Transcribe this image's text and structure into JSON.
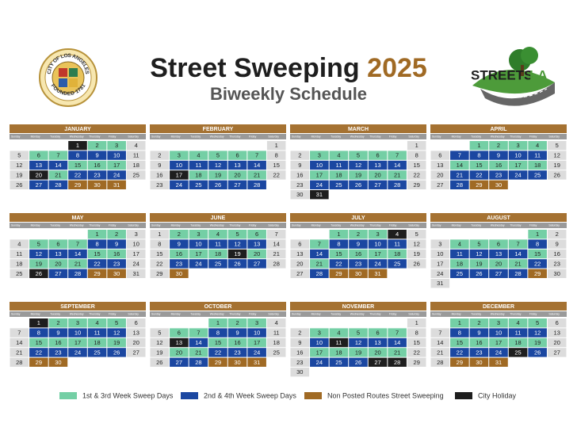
{
  "header": {
    "title": "Street Sweeping",
    "year": "2025",
    "subtitle": "Biweekly Schedule",
    "seal": {
      "top": "CITY OF LOS ANGELES",
      "bottom": "FOUNDED 1781"
    },
    "logo": {
      "left": "STREETS",
      "right": "LA"
    }
  },
  "weekdays": [
    "Sunday",
    "Monday",
    "Tuesday",
    "Wednesday",
    "Thursday",
    "Friday",
    "Saturday"
  ],
  "empty_color": "#dcdcdc",
  "months": [
    {
      "name": "JANUARY",
      "weeks": [
        [
          null,
          null,
          null,
          1,
          2,
          3,
          4
        ],
        [
          5,
          6,
          7,
          8,
          9,
          10,
          11
        ],
        [
          12,
          13,
          14,
          15,
          16,
          17,
          18
        ],
        [
          19,
          20,
          21,
          22,
          23,
          24,
          25
        ],
        [
          26,
          27,
          28,
          29,
          30,
          31
        ]
      ],
      "colors": [
        "#1e1e1e",
        "#74cfa5",
        "#74cfa5",
        null,
        null,
        "#74cfa5",
        "#74cfa5",
        "#1b47a1",
        "#1b47a1",
        "#1b47a1",
        null,
        null,
        "#1b47a1",
        "#1b47a1",
        "#74cfa5",
        "#74cfa5",
        "#74cfa5",
        null,
        null,
        "#1e1e1e",
        "#74cfa5",
        "#1b47a1",
        "#1b47a1",
        "#1b47a1",
        null,
        null,
        "#1b47a1",
        "#1b47a1",
        "#a06a24",
        "#a06a24",
        "#a06a24"
      ]
    },
    {
      "name": "FEBRUARY",
      "weeks": [
        [
          null,
          null,
          null,
          null,
          null,
          null,
          1
        ],
        [
          2,
          3,
          4,
          5,
          6,
          7,
          8
        ],
        [
          9,
          10,
          11,
          12,
          13,
          14,
          15
        ],
        [
          16,
          17,
          18,
          19,
          20,
          21,
          22
        ],
        [
          23,
          24,
          25,
          26,
          27,
          28
        ]
      ],
      "colors": [
        null,
        null,
        "#74cfa5",
        "#74cfa5",
        "#74cfa5",
        "#74cfa5",
        "#74cfa5",
        null,
        null,
        "#1b47a1",
        "#1b47a1",
        "#1b47a1",
        "#1b47a1",
        "#1b47a1",
        null,
        null,
        "#1e1e1e",
        "#74cfa5",
        "#74cfa5",
        "#74cfa5",
        "#74cfa5",
        null,
        null,
        "#1b47a1",
        "#1b47a1",
        "#1b47a1",
        "#1b47a1",
        "#1b47a1"
      ]
    },
    {
      "name": "MARCH",
      "weeks": [
        [
          null,
          null,
          null,
          null,
          null,
          null,
          1
        ],
        [
          2,
          3,
          4,
          5,
          6,
          7,
          8
        ],
        [
          9,
          10,
          11,
          12,
          13,
          14,
          15
        ],
        [
          16,
          17,
          18,
          19,
          20,
          21,
          22
        ],
        [
          23,
          24,
          25,
          26,
          27,
          28,
          29
        ],
        [
          30,
          31
        ]
      ],
      "colors": [
        null,
        null,
        "#74cfa5",
        "#74cfa5",
        "#74cfa5",
        "#74cfa5",
        "#74cfa5",
        null,
        null,
        "#1b47a1",
        "#1b47a1",
        "#1b47a1",
        "#1b47a1",
        "#1b47a1",
        null,
        null,
        "#74cfa5",
        "#74cfa5",
        "#74cfa5",
        "#74cfa5",
        "#74cfa5",
        null,
        null,
        "#1b47a1",
        "#1b47a1",
        "#1b47a1",
        "#1b47a1",
        "#1b47a1",
        null,
        null,
        "#1e1e1e"
      ]
    },
    {
      "name": "APRIL",
      "weeks": [
        [
          null,
          null,
          1,
          2,
          3,
          4,
          5
        ],
        [
          6,
          7,
          8,
          9,
          10,
          11,
          12
        ],
        [
          13,
          14,
          15,
          16,
          17,
          18,
          19
        ],
        [
          20,
          21,
          22,
          23,
          24,
          25,
          26
        ],
        [
          27,
          28,
          29,
          30
        ]
      ],
      "colors": [
        "#74cfa5",
        "#74cfa5",
        "#74cfa5",
        "#74cfa5",
        null,
        null,
        "#1b47a1",
        "#1b47a1",
        "#1b47a1",
        "#1b47a1",
        "#1b47a1",
        null,
        null,
        "#74cfa5",
        "#74cfa5",
        "#74cfa5",
        "#74cfa5",
        "#74cfa5",
        null,
        null,
        "#1b47a1",
        "#1b47a1",
        "#1b47a1",
        "#1b47a1",
        "#1b47a1",
        null,
        null,
        "#1b47a1",
        "#a06a24",
        "#a06a24"
      ]
    },
    {
      "name": "MAY",
      "weeks": [
        [
          null,
          null,
          null,
          null,
          1,
          2,
          3
        ],
        [
          4,
          5,
          6,
          7,
          8,
          9,
          10
        ],
        [
          11,
          12,
          13,
          14,
          15,
          16,
          17
        ],
        [
          18,
          19,
          20,
          21,
          22,
          23,
          24
        ],
        [
          25,
          26,
          27,
          28,
          29,
          30,
          31
        ]
      ],
      "colors": [
        "#74cfa5",
        "#74cfa5",
        null,
        null,
        "#74cfa5",
        "#74cfa5",
        "#74cfa5",
        "#1b47a1",
        "#1b47a1",
        null,
        null,
        "#1b47a1",
        "#1b47a1",
        "#1b47a1",
        "#74cfa5",
        "#74cfa5",
        null,
        null,
        "#74cfa5",
        "#74cfa5",
        "#74cfa5",
        "#1b47a1",
        "#1b47a1",
        null,
        null,
        "#1e1e1e",
        "#1b47a1",
        "#1b47a1",
        "#a06a24",
        "#a06a24",
        null
      ]
    },
    {
      "name": "JUNE",
      "weeks": [
        [
          1,
          2,
          3,
          4,
          5,
          6,
          7
        ],
        [
          8,
          9,
          10,
          11,
          12,
          13,
          14
        ],
        [
          15,
          16,
          17,
          18,
          19,
          20,
          21
        ],
        [
          22,
          23,
          24,
          25,
          26,
          27,
          28
        ],
        [
          29,
          30
        ]
      ],
      "colors": [
        null,
        "#74cfa5",
        "#74cfa5",
        "#74cfa5",
        "#74cfa5",
        "#74cfa5",
        null,
        null,
        "#1b47a1",
        "#1b47a1",
        "#1b47a1",
        "#1b47a1",
        "#1b47a1",
        null,
        null,
        "#74cfa5",
        "#74cfa5",
        "#74cfa5",
        "#1e1e1e",
        "#74cfa5",
        null,
        null,
        "#1b47a1",
        "#1b47a1",
        "#1b47a1",
        "#1b47a1",
        "#1b47a1",
        null,
        null,
        "#a06a24"
      ]
    },
    {
      "name": "JULY",
      "weeks": [
        [
          null,
          null,
          1,
          2,
          3,
          4,
          5
        ],
        [
          6,
          7,
          8,
          9,
          10,
          11,
          12
        ],
        [
          13,
          14,
          15,
          16,
          17,
          18,
          19
        ],
        [
          20,
          21,
          22,
          23,
          24,
          25,
          26
        ],
        [
          27,
          28,
          29,
          30,
          31
        ]
      ],
      "colors": [
        "#74cfa5",
        "#74cfa5",
        "#74cfa5",
        "#1e1e1e",
        null,
        null,
        "#74cfa5",
        "#1b47a1",
        "#1b47a1",
        "#1b47a1",
        "#1b47a1",
        null,
        null,
        "#1b47a1",
        "#74cfa5",
        "#74cfa5",
        "#74cfa5",
        "#74cfa5",
        null,
        null,
        "#74cfa5",
        "#1b47a1",
        "#1b47a1",
        "#1b47a1",
        "#1b47a1",
        null,
        null,
        "#1b47a1",
        "#a06a24",
        "#a06a24",
        "#a06a24"
      ]
    },
    {
      "name": "AUGUST",
      "weeks": [
        [
          null,
          null,
          null,
          null,
          null,
          1,
          2
        ],
        [
          3,
          4,
          5,
          6,
          7,
          8,
          9
        ],
        [
          10,
          11,
          12,
          13,
          14,
          15,
          16
        ],
        [
          17,
          18,
          19,
          20,
          21,
          22,
          23
        ],
        [
          24,
          25,
          26,
          27,
          28,
          29,
          30
        ],
        [
          31
        ]
      ],
      "colors": [
        "#74cfa5",
        null,
        null,
        "#74cfa5",
        "#74cfa5",
        "#74cfa5",
        "#74cfa5",
        "#1b47a1",
        null,
        null,
        "#1b47a1",
        "#1b47a1",
        "#1b47a1",
        "#1b47a1",
        "#74cfa5",
        null,
        null,
        "#74cfa5",
        "#74cfa5",
        "#74cfa5",
        "#74cfa5",
        "#1b47a1",
        null,
        null,
        "#1b47a1",
        "#1b47a1",
        "#1b47a1",
        "#1b47a1",
        "#a06a24",
        null,
        null
      ]
    },
    {
      "name": "SEPTEMBER",
      "weeks": [
        [
          null,
          1,
          2,
          3,
          4,
          5,
          6
        ],
        [
          7,
          8,
          9,
          10,
          11,
          12,
          13
        ],
        [
          14,
          15,
          16,
          17,
          18,
          19,
          20
        ],
        [
          21,
          22,
          23,
          24,
          25,
          26,
          27
        ],
        [
          28,
          29,
          30
        ]
      ],
      "colors": [
        "#1e1e1e",
        "#74cfa5",
        "#74cfa5",
        "#74cfa5",
        "#74cfa5",
        null,
        null,
        "#1b47a1",
        "#1b47a1",
        "#1b47a1",
        "#1b47a1",
        "#1b47a1",
        null,
        null,
        "#74cfa5",
        "#74cfa5",
        "#74cfa5",
        "#74cfa5",
        "#74cfa5",
        null,
        null,
        "#1b47a1",
        "#1b47a1",
        "#1b47a1",
        "#1b47a1",
        "#1b47a1",
        null,
        null,
        "#a06a24",
        "#a06a24"
      ]
    },
    {
      "name": "OCTOBER",
      "weeks": [
        [
          null,
          null,
          null,
          1,
          2,
          3,
          4
        ],
        [
          5,
          6,
          7,
          8,
          9,
          10,
          11
        ],
        [
          12,
          13,
          14,
          15,
          16,
          17,
          18
        ],
        [
          19,
          20,
          21,
          22,
          23,
          24,
          25
        ],
        [
          26,
          27,
          28,
          29,
          30,
          31
        ]
      ],
      "colors": [
        "#74cfa5",
        "#74cfa5",
        "#74cfa5",
        null,
        null,
        "#74cfa5",
        "#74cfa5",
        "#1b47a1",
        "#1b47a1",
        "#1b47a1",
        null,
        null,
        "#1e1e1e",
        "#1b47a1",
        "#74cfa5",
        "#74cfa5",
        "#74cfa5",
        null,
        null,
        "#74cfa5",
        "#74cfa5",
        "#1b47a1",
        "#1b47a1",
        "#1b47a1",
        null,
        null,
        "#1b47a1",
        "#1b47a1",
        "#a06a24",
        "#a06a24",
        "#a06a24"
      ]
    },
    {
      "name": "NOVEMBER",
      "weeks": [
        [
          null,
          null,
          null,
          null,
          null,
          null,
          1
        ],
        [
          2,
          3,
          4,
          5,
          6,
          7,
          8
        ],
        [
          9,
          10,
          11,
          12,
          13,
          14,
          15
        ],
        [
          16,
          17,
          18,
          19,
          20,
          21,
          22
        ],
        [
          23,
          24,
          25,
          26,
          27,
          28,
          29
        ],
        [
          30
        ]
      ],
      "colors": [
        null,
        null,
        "#74cfa5",
        "#74cfa5",
        "#74cfa5",
        "#74cfa5",
        "#74cfa5",
        null,
        null,
        "#1b47a1",
        "#1e1e1e",
        "#1b47a1",
        "#1b47a1",
        "#1b47a1",
        null,
        null,
        "#74cfa5",
        "#74cfa5",
        "#74cfa5",
        "#74cfa5",
        "#74cfa5",
        null,
        null,
        "#1b47a1",
        "#1b47a1",
        "#1b47a1",
        "#1e1e1e",
        "#1e1e1e",
        null,
        null
      ]
    },
    {
      "name": "DECEMBER",
      "weeks": [
        [
          null,
          1,
          2,
          3,
          4,
          5,
          6
        ],
        [
          7,
          8,
          9,
          10,
          11,
          12,
          13
        ],
        [
          14,
          15,
          16,
          17,
          18,
          19,
          20
        ],
        [
          21,
          22,
          23,
          24,
          25,
          26,
          27
        ],
        [
          28,
          29,
          30,
          31
        ]
      ],
      "colors": [
        "#74cfa5",
        "#74cfa5",
        "#74cfa5",
        "#74cfa5",
        "#74cfa5",
        null,
        null,
        "#1b47a1",
        "#1b47a1",
        "#1b47a1",
        "#1b47a1",
        "#1b47a1",
        null,
        null,
        "#74cfa5",
        "#74cfa5",
        "#74cfa5",
        "#74cfa5",
        "#74cfa5",
        null,
        null,
        "#1b47a1",
        "#1b47a1",
        "#1b47a1",
        "#1e1e1e",
        "#1b47a1",
        null,
        null,
        "#a06a24",
        "#a06a24",
        "#a06a24"
      ]
    }
  ],
  "legend": [
    {
      "label": "1st & 3rd Week Sweep Days",
      "color": "#74cfa5"
    },
    {
      "label": "2nd & 4th Week Sweep Days",
      "color": "#1b47a1"
    },
    {
      "label": "Non Posted Routes Street Sweeping",
      "color": "#a06a24"
    },
    {
      "label": "City Holiday",
      "color": "#1e1e1e"
    }
  ]
}
